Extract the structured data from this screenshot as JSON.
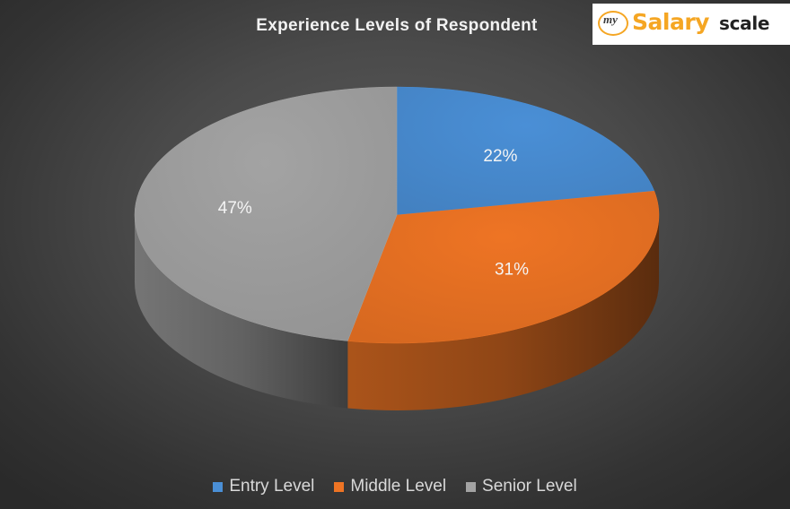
{
  "logo": {
    "prefix": "my",
    "word1": "Salary",
    "word2": "scale"
  },
  "chart_data": {
    "type": "pie",
    "title": "Experience  Levels of Respondent",
    "slices": [
      {
        "label": "Entry Level",
        "value": 22,
        "display": "22%",
        "color": "#4a8fd6"
      },
      {
        "label": "Middle Level",
        "value": 31,
        "display": "31%",
        "color": "#ee7424"
      },
      {
        "label": "Senior Level",
        "value": 47,
        "display": "47%",
        "color": "#a3a3a3"
      }
    ],
    "style": "3d",
    "legend_position": "bottom"
  }
}
